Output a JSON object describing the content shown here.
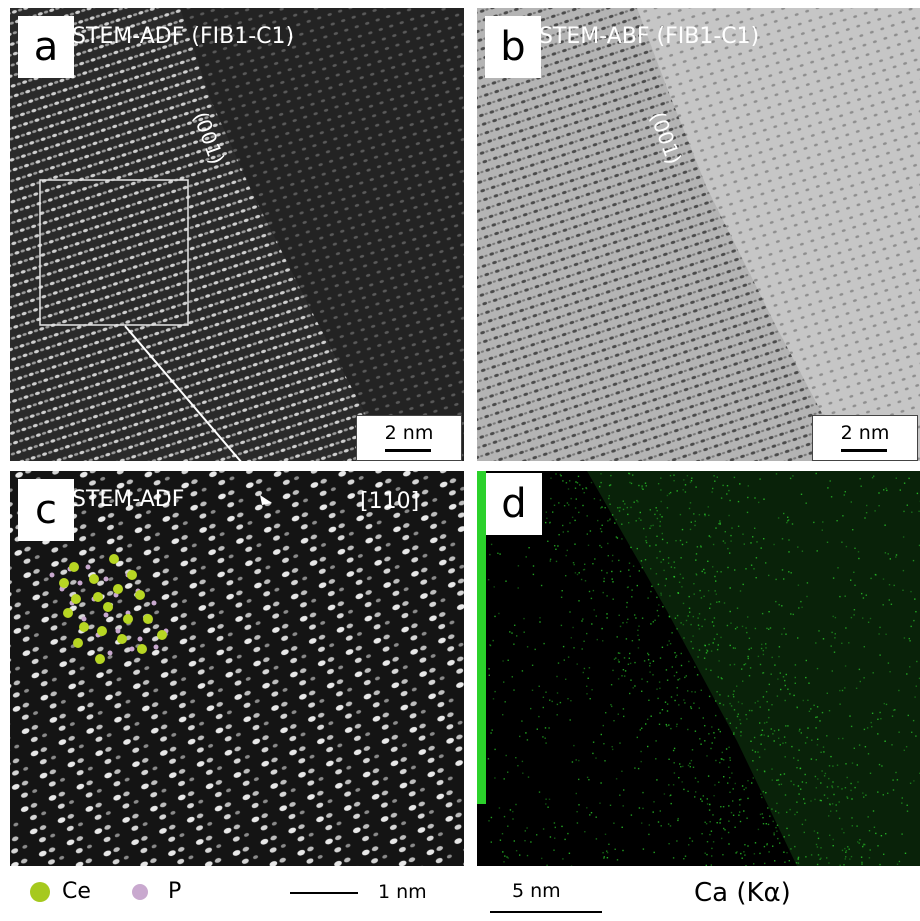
{
  "panels": {
    "a": {
      "letter": "a",
      "title": "STEM-ADF (FIB1-C1)",
      "plane_label": "(001)",
      "scale": "2 nm"
    },
    "b": {
      "letter": "b",
      "title": "STEM-ABF (FIB1-C1)",
      "plane_label": "(001)",
      "scale": "2 nm"
    },
    "c": {
      "letter": "c",
      "title": "STEM-ADF",
      "zone_axis": "[110]"
    },
    "d": {
      "letter": "d"
    }
  },
  "legend": {
    "ce_label": "Ce",
    "ce_color": "#a6c91e",
    "p_label": "P",
    "p_color": "#c9a9cf",
    "scale": "1 nm"
  },
  "map": {
    "scale": "5 nm",
    "element": "Ca (Kα)",
    "signal_color": "#2bd12b"
  }
}
